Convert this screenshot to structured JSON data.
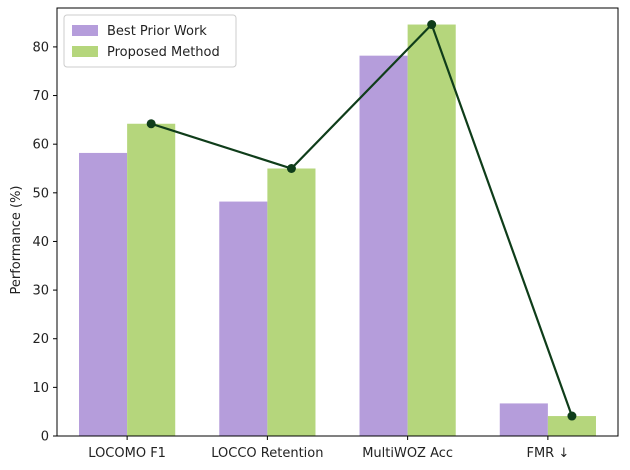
{
  "chart_data": {
    "type": "bar",
    "title": "",
    "xlabel": "",
    "ylabel": "Performance (%)",
    "ylim": [
      0,
      88
    ],
    "yticks": [
      0,
      10,
      20,
      30,
      40,
      50,
      60,
      70,
      80
    ],
    "categories": [
      "LOCOMO F1",
      "LOCCO Retention",
      "MultiWOZ Acc",
      "FMR ↓"
    ],
    "series": [
      {
        "name": "Best Prior Work",
        "color": "#b59ddb",
        "values": [
          58.2,
          48.2,
          78.2,
          6.7
        ]
      },
      {
        "name": "Proposed Method",
        "color": "#b5d67c",
        "values": [
          64.2,
          55.0,
          84.6,
          4.1
        ]
      }
    ],
    "overlay_line": {
      "color": "#0f3d1a",
      "values": [
        64.2,
        55.0,
        84.6,
        4.1
      ]
    },
    "legend": {
      "position": "top-left"
    },
    "grid": false
  }
}
